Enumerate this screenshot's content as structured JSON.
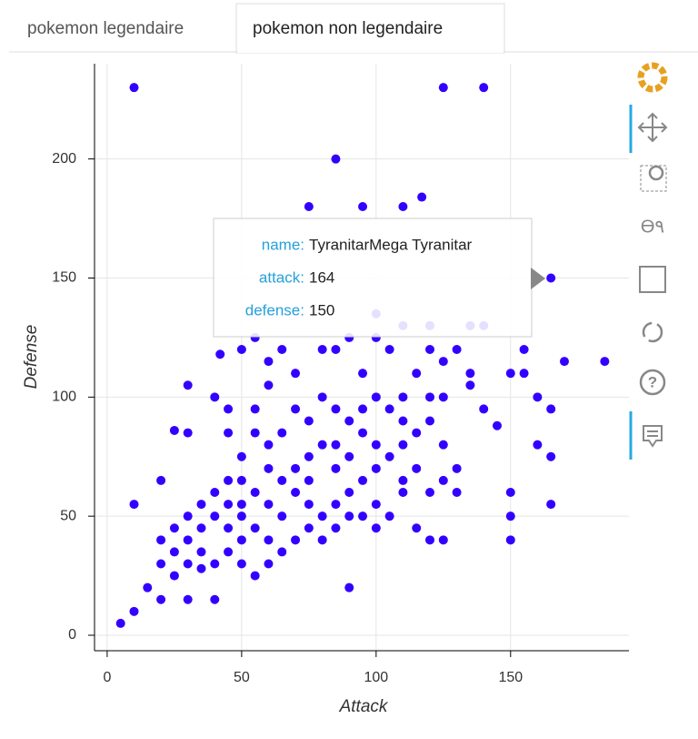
{
  "tabs": [
    "pokemon legendaire",
    "pokemon non legendaire"
  ],
  "chart_data": {
    "type": "scatter",
    "x_label": "Attack",
    "y_label": "Defense",
    "color": "#3300ff",
    "grid": true,
    "xlim": [
      -4.7,
      194
    ],
    "ylim": [
      -6.5,
      240
    ],
    "xticks": [
      0,
      50,
      100,
      150
    ],
    "yticks": [
      0,
      50,
      100,
      150,
      200
    ],
    "x": [
      10,
      125,
      140,
      85,
      75,
      95,
      110,
      117,
      165,
      185,
      170,
      160,
      165,
      155,
      150,
      155,
      5,
      10,
      15,
      20,
      30,
      40,
      90,
      10,
      20,
      30,
      25,
      30,
      40,
      42,
      50,
      55,
      165,
      160,
      165,
      150,
      150,
      150,
      125,
      120,
      115,
      100,
      145,
      140,
      135,
      135,
      130,
      125,
      120,
      100,
      90,
      85,
      80,
      65,
      60,
      70,
      60,
      45,
      45,
      55,
      50,
      45,
      40,
      35,
      30,
      25,
      20,
      25,
      30,
      35,
      40,
      45,
      50,
      55,
      60,
      50,
      45,
      40,
      35,
      30,
      25,
      20,
      50,
      55,
      60,
      65,
      70,
      75,
      80,
      85,
      90,
      95,
      100,
      105,
      110,
      115,
      120,
      125,
      130,
      130,
      120,
      110,
      105,
      95,
      85,
      75,
      70,
      65,
      60,
      55,
      50,
      60,
      70,
      80,
      90,
      100,
      110,
      75,
      65,
      85,
      95,
      80,
      70,
      90,
      100,
      110,
      120,
      60,
      55,
      75,
      85,
      95,
      105,
      115,
      125,
      65,
      75,
      85,
      95,
      50,
      45,
      35,
      80,
      90,
      100,
      110,
      125,
      105,
      115,
      100,
      110,
      120,
      140,
      135
    ],
    "values": [
      230,
      230,
      230,
      200,
      180,
      180,
      180,
      184,
      150,
      115,
      115,
      100,
      95,
      120,
      110,
      110,
      5,
      10,
      20,
      15,
      15,
      15,
      20,
      55,
      65,
      105,
      86,
      85,
      100,
      118,
      120,
      125,
      75,
      80,
      55,
      60,
      50,
      40,
      40,
      40,
      45,
      45,
      88,
      95,
      105,
      110,
      120,
      115,
      120,
      125,
      125,
      120,
      120,
      120,
      115,
      110,
      105,
      95,
      85,
      95,
      75,
      65,
      60,
      55,
      50,
      45,
      40,
      35,
      40,
      45,
      50,
      55,
      50,
      45,
      40,
      40,
      35,
      30,
      28,
      30,
      25,
      30,
      30,
      25,
      30,
      35,
      40,
      45,
      50,
      55,
      60,
      65,
      70,
      75,
      80,
      85,
      90,
      80,
      70,
      60,
      60,
      60,
      50,
      50,
      45,
      55,
      60,
      65,
      70,
      60,
      55,
      55,
      70,
      80,
      90,
      100,
      100,
      90,
      85,
      95,
      110,
      100,
      95,
      75,
      80,
      90,
      100,
      80,
      85,
      75,
      70,
      85,
      95,
      70,
      65,
      50,
      65,
      80,
      95,
      65,
      45,
      35,
      40,
      50,
      55,
      65,
      100,
      120,
      110,
      135,
      130,
      130,
      130,
      130
    ],
    "tooltip": [
      {
        "label": "name:",
        "value": "TyranitarMega Tyranitar"
      },
      {
        "label": "attack:",
        "value": 164
      },
      {
        "label": "defense:",
        "value": 150
      }
    ]
  }
}
